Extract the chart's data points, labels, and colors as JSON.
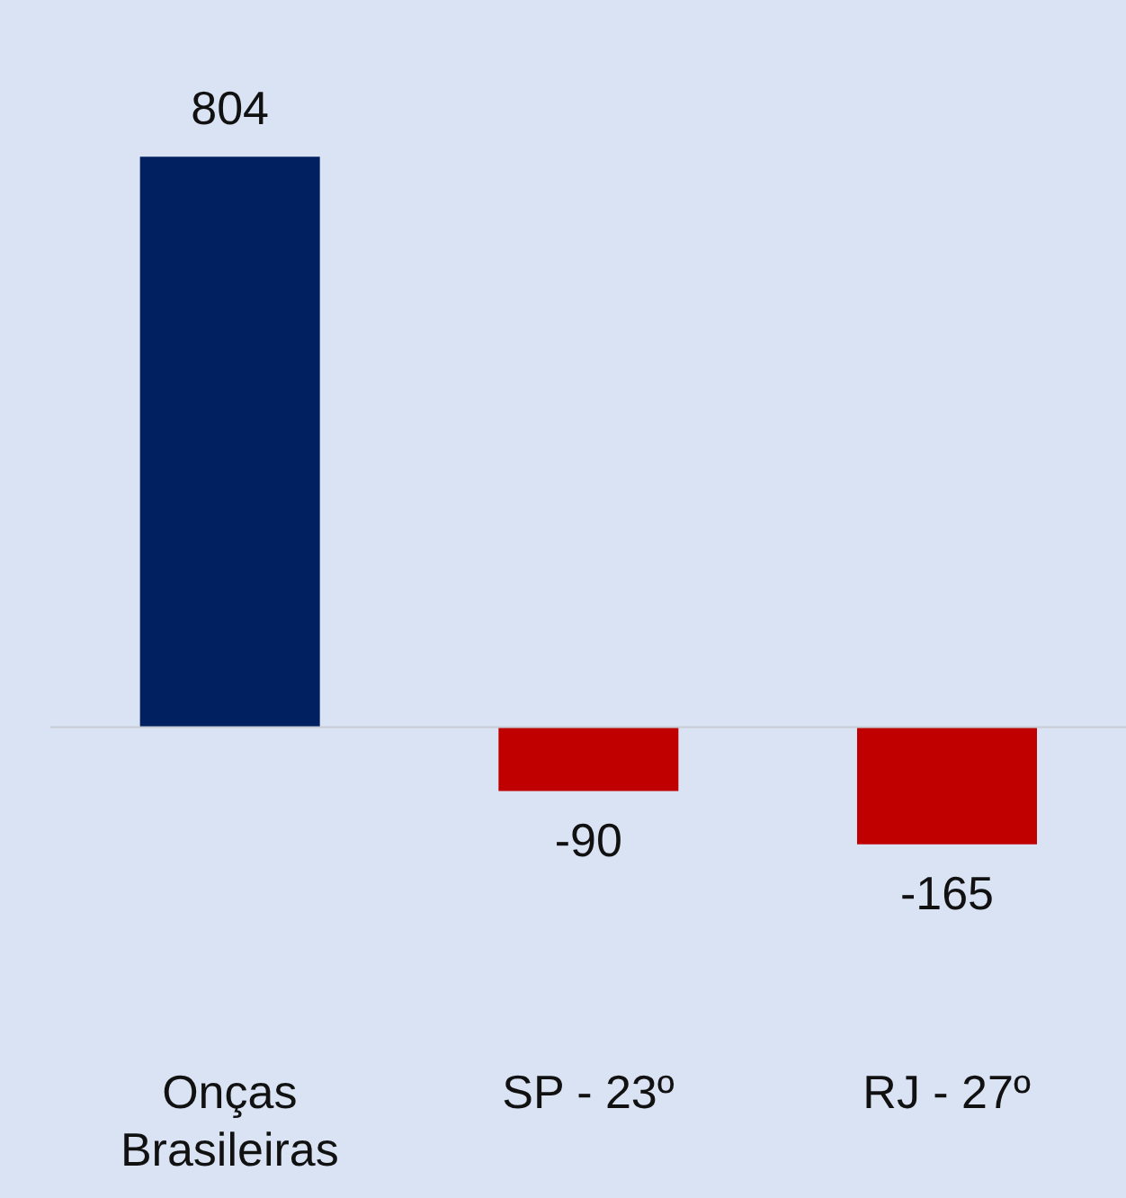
{
  "chart_data": {
    "type": "bar",
    "categories": [
      "Onças Brasileiras",
      "SP - 23º",
      "RJ - 27º"
    ],
    "values": [
      804,
      -90,
      -165
    ],
    "colors": [
      "#002060",
      "#c00000",
      "#c00000"
    ],
    "data_labels": true
  }
}
